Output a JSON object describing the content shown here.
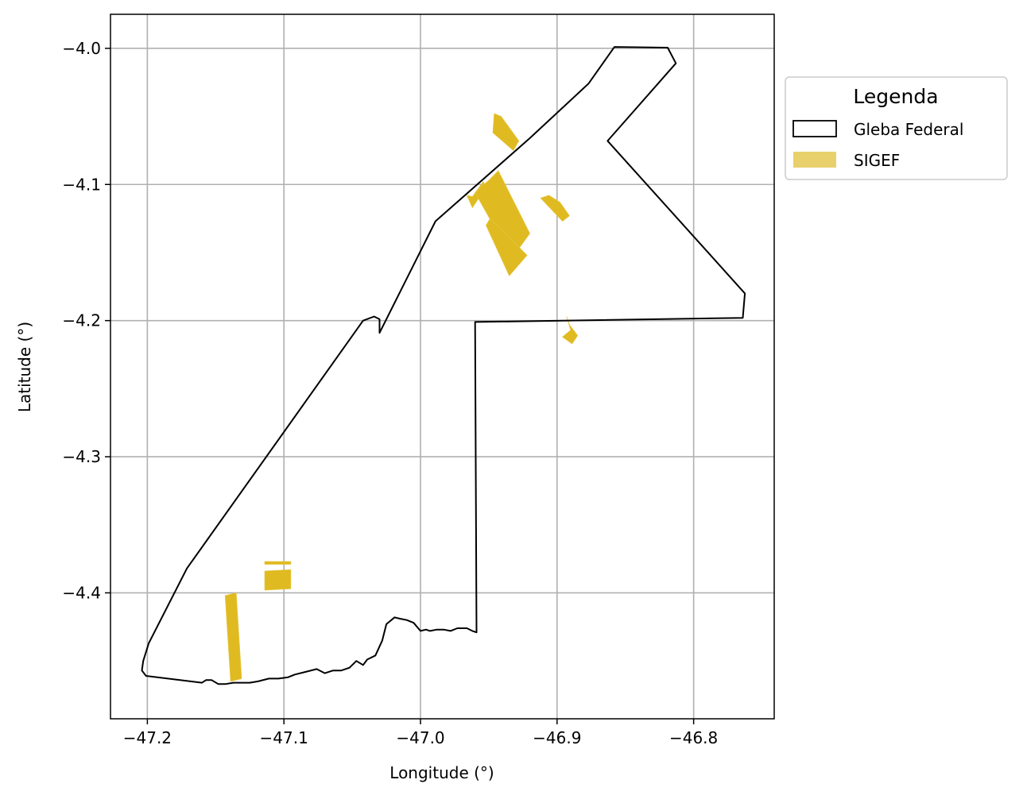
{
  "chart_data": {
    "type": "map",
    "xlabel": "Longitude (°)",
    "ylabel": "Latitude (°)",
    "xlim": [
      -47.227,
      -46.741
    ],
    "ylim": [
      -4.4925,
      -3.975
    ],
    "grid": true,
    "x_ticks": [
      -47.2,
      -47.1,
      -47.0,
      -46.9,
      -46.8
    ],
    "x_tick_labels": [
      "−47.2",
      "−47.1",
      "−47.0",
      "−46.9",
      "−46.8"
    ],
    "y_ticks": [
      -4.0,
      -4.1,
      -4.2,
      -4.3,
      -4.4
    ],
    "y_tick_labels": [
      "−4.0",
      "−4.1",
      "−4.2",
      "−4.3",
      "−4.4"
    ],
    "legend": {
      "title": "Legenda",
      "placement": "outside-right-top",
      "entries": [
        {
          "label": "Gleba Federal",
          "style": "outline",
          "color": "#000000"
        },
        {
          "label": "SIGEF",
          "style": "fill",
          "color": "#e8d06c"
        }
      ]
    },
    "series": [
      {
        "name": "Gleba Federal",
        "geometry": "polygon",
        "stroke": "#000000",
        "coordinates": [
          [
            -46.858,
            -3.999
          ],
          [
            -46.819,
            -3.9995
          ],
          [
            -46.813,
            -4.011
          ],
          [
            -46.863,
            -4.068
          ],
          [
            -46.7625,
            -4.18
          ],
          [
            -46.764,
            -4.198
          ],
          [
            -46.96,
            -4.201
          ],
          [
            -46.959,
            -4.429
          ],
          [
            -46.962,
            -4.428
          ],
          [
            -46.966,
            -4.426
          ],
          [
            -46.973,
            -4.426
          ],
          [
            -46.978,
            -4.428
          ],
          [
            -46.983,
            -4.427
          ],
          [
            -46.988,
            -4.427
          ],
          [
            -46.993,
            -4.428
          ],
          [
            -46.996,
            -4.427
          ],
          [
            -47.0,
            -4.428
          ],
          [
            -47.005,
            -4.422
          ],
          [
            -47.01,
            -4.42
          ],
          [
            -47.015,
            -4.419
          ],
          [
            -47.019,
            -4.418
          ],
          [
            -47.025,
            -4.423
          ],
          [
            -47.028,
            -4.435
          ],
          [
            -47.033,
            -4.446
          ],
          [
            -47.039,
            -4.449
          ],
          [
            -47.042,
            -4.453
          ],
          [
            -47.047,
            -4.45
          ],
          [
            -47.052,
            -4.455
          ],
          [
            -47.058,
            -4.457
          ],
          [
            -47.064,
            -4.457
          ],
          [
            -47.07,
            -4.459
          ],
          [
            -47.076,
            -4.456
          ],
          [
            -47.084,
            -4.458
          ],
          [
            -47.092,
            -4.46
          ],
          [
            -47.097,
            -4.462
          ],
          [
            -47.104,
            -4.463
          ],
          [
            -47.111,
            -4.463
          ],
          [
            -47.119,
            -4.465
          ],
          [
            -47.125,
            -4.466
          ],
          [
            -47.131,
            -4.466
          ],
          [
            -47.137,
            -4.466
          ],
          [
            -47.143,
            -4.467
          ],
          [
            -47.148,
            -4.467
          ],
          [
            -47.153,
            -4.464
          ],
          [
            -47.157,
            -4.464
          ],
          [
            -47.16,
            -4.466
          ],
          [
            -47.201,
            -4.461
          ],
          [
            -47.204,
            -4.457
          ],
          [
            -47.203,
            -4.45
          ],
          [
            -47.199,
            -4.437
          ],
          [
            -47.171,
            -4.382
          ],
          [
            -47.042,
            -4.2
          ],
          [
            -47.034,
            -4.197
          ],
          [
            -47.03,
            -4.199
          ],
          [
            -47.03,
            -4.209
          ],
          [
            -46.989,
            -4.127
          ],
          [
            -46.92,
            -4.066
          ],
          [
            -46.877,
            -4.026
          ]
        ]
      },
      {
        "name": "SIGEF",
        "geometry": "multipolygon",
        "fill": "#dfba21",
        "coordinates": [
          [
            [
              -46.946,
              -4.048
            ],
            [
              -46.941,
              -4.05
            ],
            [
              -46.928,
              -4.068
            ],
            [
              -46.932,
              -4.075
            ],
            [
              -46.947,
              -4.062
            ]
          ],
          [
            [
              -46.966,
              -4.108
            ],
            [
              -46.962,
              -4.109
            ],
            [
              -46.954,
              -4.098
            ],
            [
              -46.952,
              -4.102
            ],
            [
              -46.962,
              -4.117
            ]
          ],
          [
            [
              -46.96,
              -4.106
            ],
            [
              -46.95,
              -4.097
            ],
            [
              -46.943,
              -4.09
            ],
            [
              -46.92,
              -4.136
            ],
            [
              -46.933,
              -4.154
            ]
          ],
          [
            [
              -46.906,
              -4.108
            ],
            [
              -46.898,
              -4.113
            ],
            [
              -46.891,
              -4.123
            ],
            [
              -46.896,
              -4.127
            ],
            [
              -46.912,
              -4.11
            ]
          ],
          [
            [
              -46.949,
              -4.125
            ],
            [
              -46.94,
              -4.134
            ],
            [
              -46.922,
              -4.152
            ],
            [
              -46.935,
              -4.167
            ],
            [
              -46.952,
              -4.13
            ]
          ],
          [
            [
              -46.893,
              -4.197
            ],
            [
              -46.891,
              -4.203
            ],
            [
              -46.885,
              -4.211
            ],
            [
              -46.889,
              -4.217
            ],
            [
              -46.896,
              -4.212
            ],
            [
              -46.89,
              -4.207
            ]
          ],
          [
            [
              -47.114,
              -4.377
            ],
            [
              -47.095,
              -4.377
            ],
            [
              -47.095,
              -4.379
            ],
            [
              -47.114,
              -4.379
            ]
          ],
          [
            [
              -47.114,
              -4.384
            ],
            [
              -47.095,
              -4.383
            ],
            [
              -47.095,
              -4.397
            ],
            [
              -47.114,
              -4.398
            ]
          ],
          [
            [
              -47.143,
              -4.402
            ],
            [
              -47.135,
              -4.4
            ],
            [
              -47.131,
              -4.463
            ],
            [
              -47.139,
              -4.465
            ]
          ]
        ]
      }
    ]
  }
}
